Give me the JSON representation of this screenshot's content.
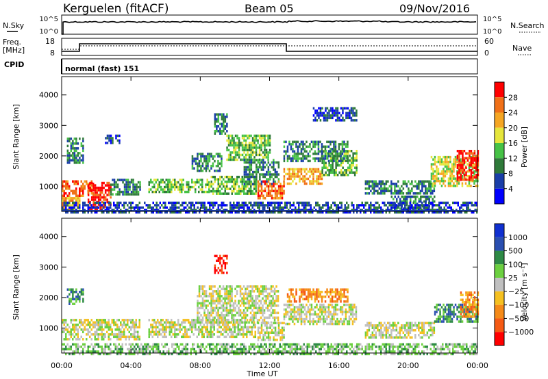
{
  "header": {
    "station": "Kerguelen (fitACF)",
    "beam": "Beam 05",
    "date": "09/Nov/2016"
  },
  "strips": {
    "nsky_label": "N.Sky",
    "nsky_ticks": [
      "10^5",
      "10^0"
    ],
    "nsearch_label": "N.Search",
    "nsearch_ticks": [
      "10^5",
      "10^0"
    ],
    "freq_label": "Freq.",
    "freq_unit": "[MHz]",
    "freq_ticks": [
      "18",
      "8"
    ],
    "nave_label": "Nave",
    "nave_ticks": [
      "60",
      "0"
    ],
    "cpid_label": "CPID",
    "cpid_text": "normal (fast) 151"
  },
  "colors": {
    "power": [
      "#0000ff",
      "#1a3ea8",
      "#2f7a3a",
      "#46c246",
      "#e6e63c",
      "#f5a623",
      "#f07018",
      "#ff0000"
    ],
    "velocity": [
      "#1030d0",
      "#2a4fb0",
      "#2e8a46",
      "#6cd040",
      "#c0c0c0",
      "#f5c020",
      "#f58a18",
      "#f55a14",
      "#ff0000"
    ],
    "ground_scatter": "#c0c0c0"
  },
  "chart_data": [
    {
      "type": "heatmap",
      "quantity": "power",
      "xlabel": "",
      "ylabel": "Slant Range [km]",
      "xlim": [
        0,
        24
      ],
      "ylim": [
        180,
        4600
      ],
      "yticks": [
        "1000",
        "2000",
        "3000",
        "4000"
      ],
      "colorbar_label": "Power [dB]",
      "colorbar_ticks": [
        "4",
        "8",
        "12",
        "16",
        "20",
        "24",
        "28"
      ],
      "colorbar_range": [
        0,
        32
      ],
      "regions": [
        {
          "t": [
            0.0,
            1.8
          ],
          "r": [
            700,
            1200
          ],
          "level": 6
        },
        {
          "t": [
            0.0,
            1.0
          ],
          "r": [
            200,
            650
          ],
          "level": 5
        },
        {
          "t": [
            1.5,
            2.8
          ],
          "r": [
            250,
            1150
          ],
          "level": 7
        },
        {
          "t": [
            2.8,
            4.5
          ],
          "r": [
            750,
            1250
          ],
          "level": 2
        },
        {
          "t": [
            0.3,
            1.2
          ],
          "r": [
            1800,
            2600
          ],
          "level": 2
        },
        {
          "t": [
            2.5,
            3.3
          ],
          "r": [
            2400,
            2700
          ],
          "level": 1
        },
        {
          "t": [
            5.0,
            8.5
          ],
          "r": [
            800,
            1250
          ],
          "level": 3
        },
        {
          "t": [
            8.5,
            11.2
          ],
          "r": [
            750,
            1350
          ],
          "level": 3
        },
        {
          "t": [
            7.5,
            9.2
          ],
          "r": [
            1500,
            2100
          ],
          "level": 2
        },
        {
          "t": [
            8.8,
            9.5
          ],
          "r": [
            2700,
            3400
          ],
          "level": 2
        },
        {
          "t": [
            9.5,
            12.0
          ],
          "r": [
            1900,
            2700
          ],
          "level": 3
        },
        {
          "t": [
            10.5,
            12.5
          ],
          "r": [
            1100,
            1900
          ],
          "level": 2
        },
        {
          "t": [
            11.3,
            12.8
          ],
          "r": [
            600,
            1200
          ],
          "level": 6
        },
        {
          "t": [
            12.8,
            15.0
          ],
          "r": [
            1100,
            1600
          ],
          "level": 5
        },
        {
          "t": [
            15.0,
            17.0
          ],
          "r": [
            1400,
            2200
          ],
          "level": 3
        },
        {
          "t": [
            12.8,
            16.5
          ],
          "r": [
            1800,
            2500
          ],
          "level": 2
        },
        {
          "t": [
            14.5,
            17.0
          ],
          "r": [
            3200,
            3600
          ],
          "level": 1
        },
        {
          "t": [
            17.5,
            21.5
          ],
          "r": [
            800,
            1200
          ],
          "level": 2
        },
        {
          "t": [
            19.0,
            21.5
          ],
          "r": [
            300,
            700
          ],
          "level": 2
        },
        {
          "t": [
            21.3,
            24.0
          ],
          "r": [
            1000,
            2000
          ],
          "level": 4
        },
        {
          "t": [
            22.8,
            24.0
          ],
          "r": [
            1200,
            2200
          ],
          "level": 7
        },
        {
          "t": [
            0.0,
            24.0
          ],
          "r": [
            180,
            500
          ],
          "level": 1
        }
      ]
    },
    {
      "type": "heatmap",
      "quantity": "velocity",
      "xlabel": "Time UT",
      "ylabel": "Slant Range [km]",
      "xlim": [
        0,
        24
      ],
      "ylim": [
        180,
        4600
      ],
      "xticks": [
        "00:00",
        "04:00",
        "08:00",
        "12:00",
        "16:00",
        "20:00",
        "00:00"
      ],
      "yticks": [
        "1000",
        "2000",
        "3000",
        "4000"
      ],
      "colorbar_label": "Velocity [m s⁻¹]",
      "colorbar_ticks": [
        "1000",
        "500",
        "100",
        "25",
        "−25",
        "−100",
        "−500",
        "−1000"
      ],
      "colorbar_range": [
        -1200,
        1200
      ],
      "regions": [
        {
          "t": [
            0.0,
            4.5
          ],
          "r": [
            600,
            1300
          ],
          "level": 4
        },
        {
          "t": [
            0.3,
            1.2
          ],
          "r": [
            1800,
            2300
          ],
          "level": 2
        },
        {
          "t": [
            5.0,
            11.2
          ],
          "r": [
            750,
            1300
          ],
          "level": 4
        },
        {
          "t": [
            7.8,
            12.5
          ],
          "r": [
            1200,
            2400
          ],
          "level": 4
        },
        {
          "t": [
            8.8,
            9.5
          ],
          "r": [
            2800,
            3400
          ],
          "level": 8
        },
        {
          "t": [
            11.3,
            12.8
          ],
          "r": [
            600,
            1200
          ],
          "level": 4
        },
        {
          "t": [
            12.8,
            17.0
          ],
          "r": [
            1100,
            1800
          ],
          "level": 4
        },
        {
          "t": [
            13.0,
            16.5
          ],
          "r": [
            1900,
            2300
          ],
          "level": 6
        },
        {
          "t": [
            17.5,
            21.5
          ],
          "r": [
            700,
            1200
          ],
          "level": 4
        },
        {
          "t": [
            21.5,
            24.0
          ],
          "r": [
            1200,
            1800
          ],
          "level": 2
        },
        {
          "t": [
            23.0,
            24.0
          ],
          "r": [
            1400,
            2200
          ],
          "level": 6
        },
        {
          "t": [
            0.0,
            24.0
          ],
          "r": [
            180,
            500
          ],
          "level": 3
        }
      ]
    }
  ]
}
